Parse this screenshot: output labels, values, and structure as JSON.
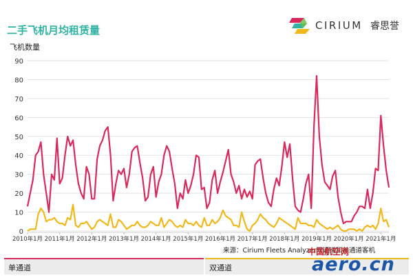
{
  "header": {
    "title": "二手飞机月均租赁量",
    "y_axis_label": "飞机数量"
  },
  "logo": {
    "brand": "CIRIUM",
    "brand_cn": "睿思誉"
  },
  "source_note": "来源：Cirium Fleets Analyzer双通道和单通道客机",
  "legend": {
    "left_label": "单通道",
    "right_label": "双通道"
  },
  "watermark": {
    "top": "中国航空网",
    "main": "aero.cn"
  },
  "colors": {
    "single_aisle": "#d9285c",
    "twin_aisle": "#f0b81a",
    "title": "#2fb3a3"
  },
  "chart_data": {
    "type": "line",
    "ylim": [
      0,
      90
    ],
    "yticks": [
      0,
      10,
      20,
      30,
      40,
      50,
      60,
      70,
      80,
      90
    ],
    "x_start": "2010-01",
    "x_end": "2021-08",
    "xtick_labels": [
      "2010年1月",
      "2011年1月",
      "2012年1月",
      "2013年1月",
      "2014年1月",
      "2015年1月",
      "2016年1月",
      "2017年1月",
      "2018年1月",
      "2019年1月",
      "2020年1月",
      "2021年1月"
    ],
    "grid": true,
    "series": [
      {
        "name": "单通道",
        "values": [
          13,
          20,
          27,
          40,
          42,
          47,
          30,
          20,
          10,
          30,
          27,
          49,
          25,
          28,
          40,
          50,
          45,
          48,
          35,
          25,
          20,
          17,
          34,
          30,
          17,
          17,
          38,
          45,
          48,
          53,
          55,
          40,
          16,
          25,
          32,
          30,
          33,
          23,
          30,
          42,
          44,
          45,
          36,
          28,
          16,
          18,
          30,
          34,
          18,
          26,
          30,
          40,
          45,
          42,
          33,
          25,
          12,
          20,
          17,
          27,
          20,
          24,
          30,
          40,
          39,
          22,
          23,
          12,
          15,
          27,
          32,
          20,
          26,
          31,
          37,
          43,
          30,
          26,
          20,
          24,
          17,
          22,
          18,
          21,
          17,
          35,
          37,
          38,
          28,
          20,
          15,
          13,
          22,
          28,
          24,
          34,
          47,
          39,
          46,
          28,
          13,
          11,
          10,
          17,
          25,
          30,
          12,
          55,
          82,
          50,
          35,
          26,
          24,
          22,
          29,
          32,
          18,
          10,
          4,
          5,
          5,
          5,
          8,
          10,
          13,
          13,
          12,
          22,
          12,
          20,
          33,
          32,
          61,
          45,
          32,
          23
        ]
      },
      {
        "name": "双通道",
        "values": [
          0,
          1,
          1,
          1,
          9,
          12,
          10,
          5,
          6,
          6,
          7,
          5,
          4,
          4,
          3,
          7,
          6,
          14,
          3,
          2,
          4,
          4,
          5,
          3,
          1,
          2,
          5,
          6,
          5,
          4,
          3,
          9,
          2,
          2,
          6,
          5,
          3,
          1,
          2,
          3,
          3,
          5,
          3,
          2,
          2,
          3,
          5,
          4,
          3,
          3,
          7,
          2,
          4,
          6,
          5,
          3,
          2,
          3,
          2,
          6,
          4,
          4,
          3,
          5,
          3,
          2,
          7,
          3,
          3,
          6,
          4,
          5,
          7,
          11,
          8,
          7,
          6,
          3,
          3,
          2,
          10,
          5,
          1,
          0,
          3,
          4,
          6,
          9,
          7,
          6,
          4,
          3,
          2,
          4,
          7,
          6,
          5,
          4,
          3,
          2,
          1,
          7,
          4,
          4,
          4,
          3,
          3,
          2,
          6,
          4,
          3,
          2,
          1,
          2,
          1,
          2,
          3,
          1,
          0,
          0,
          1,
          1,
          1,
          0,
          1,
          0,
          2,
          3,
          2,
          3,
          1,
          4,
          12,
          5,
          6,
          2
        ]
      }
    ]
  }
}
